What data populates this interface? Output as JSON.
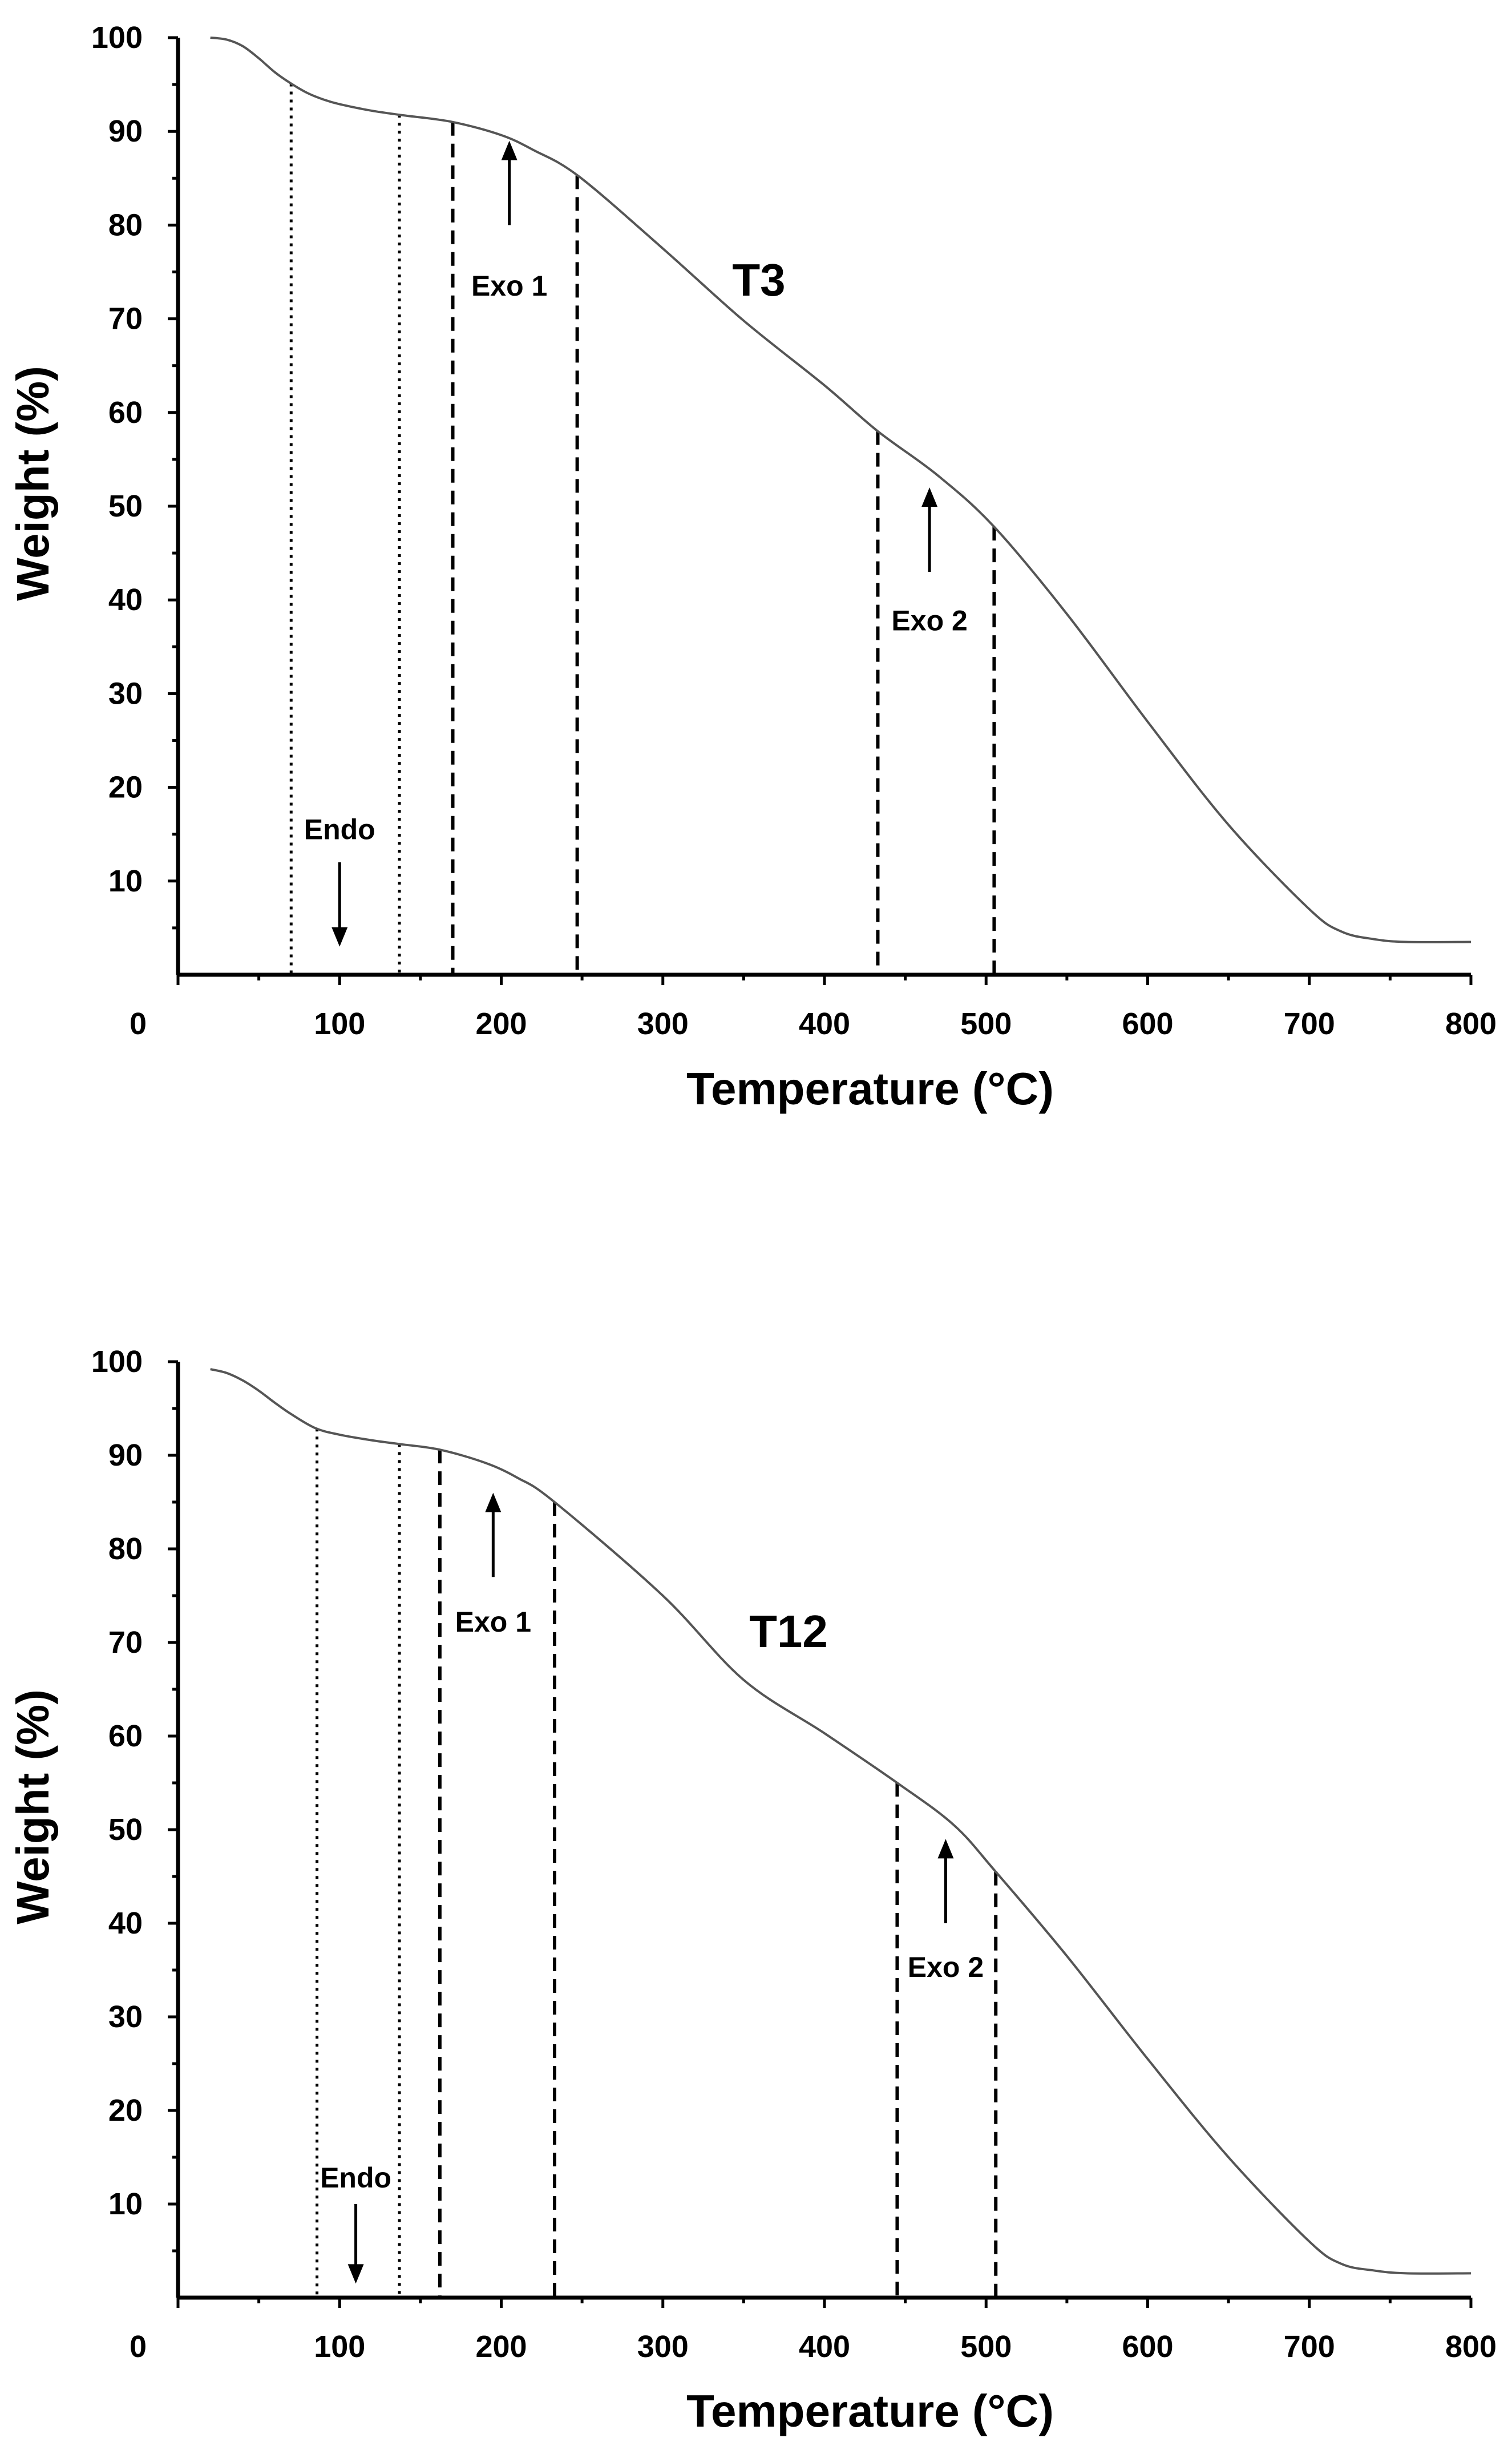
{
  "chart_data": [
    {
      "type": "line",
      "title": "T3",
      "xlabel": "Temperature (°C)",
      "ylabel": "Weight (%)",
      "xlim": [
        0,
        800
      ],
      "ylim": [
        0,
        100
      ],
      "x_ticks": [
        0,
        100,
        200,
        300,
        400,
        500,
        600,
        700,
        800
      ],
      "y_ticks": [
        10,
        20,
        30,
        40,
        50,
        60,
        70,
        80,
        90,
        100
      ],
      "series": [
        {
          "name": "T3",
          "x": [
            20,
            30,
            40,
            50,
            60,
            70,
            80,
            90,
            100,
            120,
            140,
            170,
            200,
            220,
            248,
            300,
            350,
            400,
            433,
            470,
            505,
            550,
            600,
            650,
            700,
            720,
            740,
            760,
            800
          ],
          "y": [
            100,
            99.8,
            99.1,
            97.8,
            96.3,
            95.1,
            94.1,
            93.4,
            92.9,
            92.2,
            91.7,
            91.0,
            89.6,
            88.0,
            85.2,
            77.5,
            69.8,
            62.9,
            58.0,
            53.3,
            47.8,
            38.5,
            27.0,
            16.0,
            7.0,
            4.6,
            3.8,
            3.5,
            3.5
          ]
        }
      ],
      "vlines": [
        {
          "x": 70,
          "style": "dotted"
        },
        {
          "x": 137,
          "style": "dotted"
        },
        {
          "x": 170,
          "style": "dashed"
        },
        {
          "x": 247,
          "style": "dashed"
        },
        {
          "x": 433,
          "style": "dashed"
        },
        {
          "x": 505,
          "style": "dashed"
        }
      ],
      "annotations": [
        {
          "label": "Endo",
          "x": 100,
          "y": 15.5,
          "arrow": "down",
          "arrow_from": 12,
          "arrow_to": 3
        },
        {
          "label": "Exo 1",
          "x": 205,
          "y": 73.5,
          "arrow": "up",
          "arrow_from": 80,
          "arrow_to": 89
        },
        {
          "label": "Exo 2",
          "x": 465,
          "y": 37.8,
          "arrow": "up",
          "arrow_from": 43,
          "arrow_to": 52
        }
      ]
    },
    {
      "type": "line",
      "title": "T12",
      "xlabel": "Temperature (°C)",
      "ylabel": "Weight (%)",
      "xlim": [
        0,
        800
      ],
      "ylim": [
        0,
        100
      ],
      "x_ticks": [
        0,
        100,
        200,
        300,
        400,
        500,
        600,
        700,
        800
      ],
      "y_ticks": [
        10,
        20,
        30,
        40,
        50,
        60,
        70,
        80,
        90,
        100
      ],
      "series": [
        {
          "name": "T12",
          "x": [
            20,
            30,
            40,
            50,
            60,
            70,
            85,
            100,
            120,
            137,
            162,
            190,
            210,
            233,
            300,
            350,
            400,
            445,
            480,
            506,
            550,
            600,
            650,
            700,
            720,
            740,
            760,
            800
          ],
          "y": [
            99.2,
            98.8,
            98.0,
            96.9,
            95.6,
            94.4,
            92.9,
            92.2,
            91.6,
            91.2,
            90.6,
            89.2,
            87.6,
            85.0,
            75.0,
            66.0,
            60.3,
            55.0,
            50.5,
            45.5,
            36.5,
            25.5,
            15.0,
            6.0,
            3.6,
            2.9,
            2.6,
            2.6
          ]
        }
      ],
      "vlines": [
        {
          "x": 86,
          "style": "dotted"
        },
        {
          "x": 137,
          "style": "dotted"
        },
        {
          "x": 162,
          "style": "dashed"
        },
        {
          "x": 233,
          "style": "dashed"
        },
        {
          "x": 445,
          "style": "dashed"
        },
        {
          "x": 506,
          "style": "dashed"
        }
      ],
      "annotations": [
        {
          "label": "Endo",
          "x": 110,
          "y": 12.8,
          "arrow": "down",
          "arrow_from": 10,
          "arrow_to": 1.5
        },
        {
          "label": "Exo 1",
          "x": 195,
          "y": 72.2,
          "arrow": "up",
          "arrow_from": 77,
          "arrow_to": 86
        },
        {
          "label": "Exo 2",
          "x": 475,
          "y": 35.3,
          "arrow": "up",
          "arrow_from": 40,
          "arrow_to": 49
        }
      ]
    }
  ]
}
